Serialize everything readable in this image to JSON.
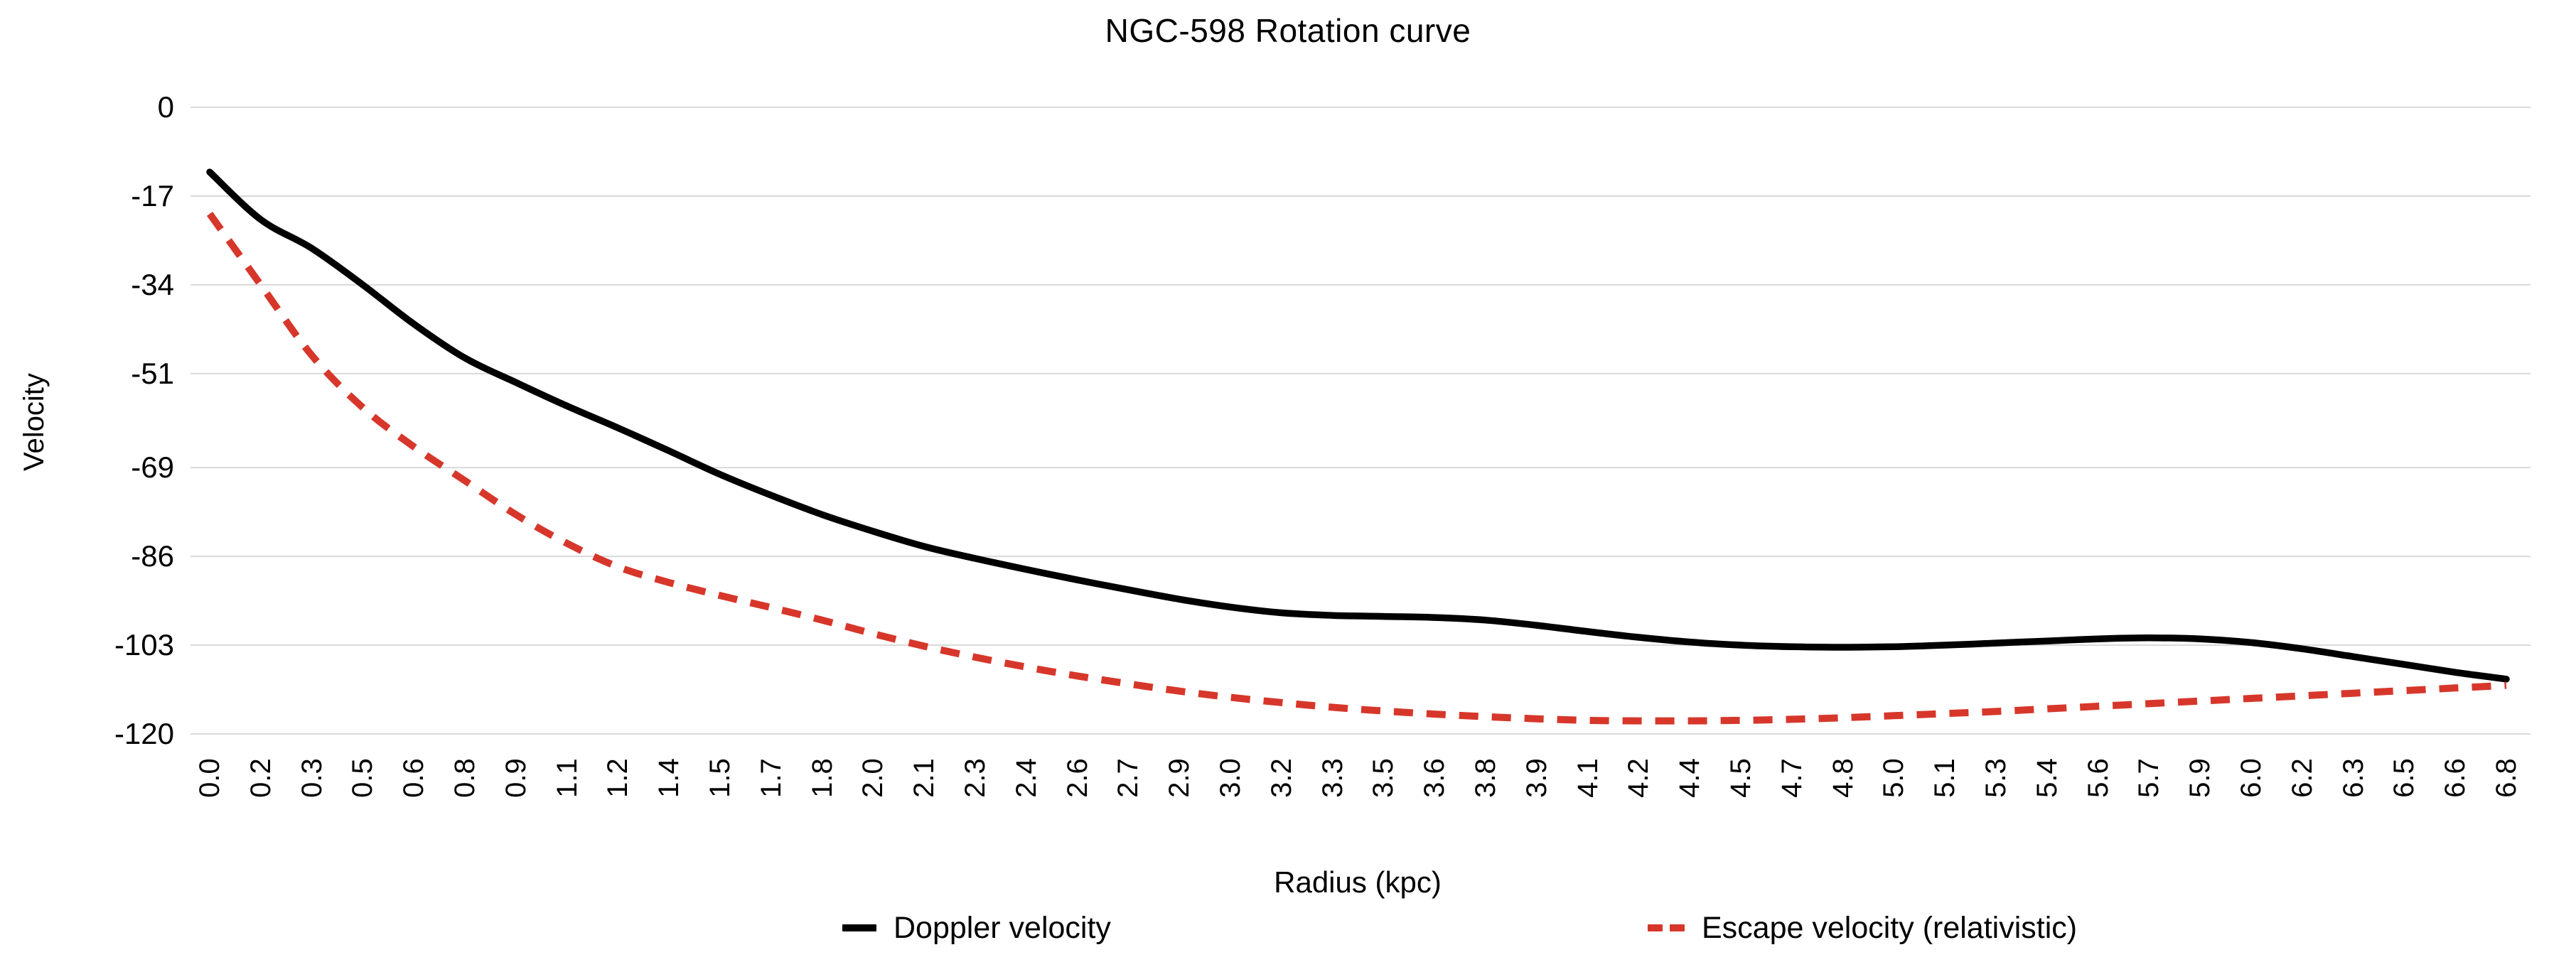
{
  "title": "NGC-598 Rotation curve",
  "axes": {
    "x_title": "Radius (kpc)",
    "y_title": "Velocity"
  },
  "legend": {
    "doppler_label": "Doppler velocity",
    "escape_label": "Escape velocity (relativistic)"
  },
  "colors": {
    "doppler_line": "#000000",
    "escape_line": "#d7372b",
    "gridline": "#d9d9d9",
    "text": "#000000",
    "background": "#ffffff"
  },
  "chart_data": {
    "type": "line",
    "title": "NGC-598 Rotation curve",
    "xlabel": "Radius (kpc)",
    "ylabel": "Velocity",
    "ylim": [
      -120,
      0
    ],
    "grid": "horizontal-only",
    "legend_position": "bottom",
    "y_ticks": [
      0,
      -17,
      -34,
      -51,
      -69,
      -86,
      -103,
      -120
    ],
    "y_tick_labels": [
      "0",
      "-17",
      "-34",
      "-51",
      "-69",
      "-86",
      "-103",
      "-120"
    ],
    "x": [
      0.0,
      0.15,
      0.3,
      0.45,
      0.6,
      0.75,
      0.9,
      1.05,
      1.2,
      1.35,
      1.5,
      1.65,
      1.8,
      1.95,
      2.1,
      2.25,
      2.4,
      2.55,
      2.7,
      2.85,
      3.0,
      3.15,
      3.3,
      3.45,
      3.6,
      3.75,
      3.9,
      4.05,
      4.2,
      4.35,
      4.5,
      4.65,
      4.8,
      4.95,
      5.1,
      5.25,
      5.4,
      5.55,
      5.7,
      5.85,
      6.0,
      6.15,
      6.3,
      6.45,
      6.6,
      6.75
    ],
    "x_tick_labels": [
      "0.0",
      "0.2",
      "0.3",
      "0.5",
      "0.6",
      "0.8",
      "0.9",
      "1.1",
      "1.2",
      "1.4",
      "1.5",
      "1.7",
      "1.8",
      "2.0",
      "2.1",
      "2.3",
      "2.4",
      "2.6",
      "2.7",
      "2.9",
      "3.0",
      "3.2",
      "3.3",
      "3.5",
      "3.6",
      "3.8",
      "3.9",
      "4.1",
      "4.2",
      "4.4",
      "4.5",
      "4.7",
      "4.8",
      "5.0",
      "5.1",
      "5.3",
      "5.4",
      "5.6",
      "5.7",
      "5.9",
      "6.0",
      "6.2",
      "6.3",
      "6.5",
      "6.6",
      "6.8"
    ],
    "series": [
      {
        "name": "Doppler velocity",
        "color": "#000000",
        "style": "solid",
        "values": [
          -12.4,
          -21.5,
          -27.0,
          -34.0,
          -41.5,
          -48.0,
          -52.7,
          -57.2,
          -61.4,
          -65.8,
          -70.3,
          -74.3,
          -78.0,
          -81.2,
          -84.1,
          -86.4,
          -88.5,
          -90.5,
          -92.4,
          -94.2,
          -95.7,
          -96.8,
          -97.3,
          -97.5,
          -97.7,
          -98.2,
          -99.2,
          -100.4,
          -101.5,
          -102.4,
          -103.0,
          -103.3,
          -103.4,
          -103.3,
          -103.0,
          -102.6,
          -102.2,
          -101.8,
          -101.6,
          -101.8,
          -102.5,
          -103.7,
          -105.2,
          -106.7,
          -108.2,
          -109.5
        ]
      },
      {
        "name": "Escape velocity (relativistic)",
        "color": "#d7372b",
        "style": "dashed",
        "values": [
          -20.4,
          -34.0,
          -47.5,
          -57.5,
          -65.0,
          -71.5,
          -78.0,
          -83.5,
          -88.0,
          -91.0,
          -93.5,
          -95.8,
          -98.2,
          -100.8,
          -103.2,
          -105.3,
          -107.2,
          -108.9,
          -110.4,
          -111.8,
          -113.0,
          -114.0,
          -114.9,
          -115.6,
          -116.2,
          -116.7,
          -117.1,
          -117.4,
          -117.5,
          -117.5,
          -117.4,
          -117.2,
          -116.9,
          -116.5,
          -116.1,
          -115.7,
          -115.2,
          -114.7,
          -114.2,
          -113.7,
          -113.2,
          -112.7,
          -112.2,
          -111.7,
          -111.2,
          -110.7
        ]
      }
    ]
  }
}
